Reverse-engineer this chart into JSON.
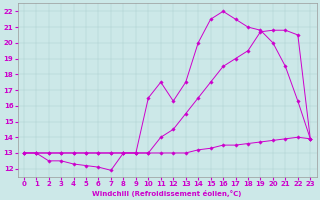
{
  "xlabel": "Windchill (Refroidissement éolien,°C)",
  "bg_color": "#cce8e8",
  "line_color": "#cc00cc",
  "xlim": [
    -0.5,
    23.5
  ],
  "ylim": [
    11.5,
    22.5
  ],
  "xticks": [
    0,
    1,
    2,
    3,
    4,
    5,
    6,
    7,
    8,
    9,
    10,
    11,
    12,
    13,
    14,
    15,
    16,
    17,
    18,
    19,
    20,
    21,
    22,
    23
  ],
  "yticks": [
    12,
    13,
    14,
    15,
    16,
    17,
    18,
    19,
    20,
    21,
    22
  ],
  "line1_x": [
    0,
    1,
    2,
    3,
    4,
    5,
    6,
    7,
    8,
    9,
    10,
    11,
    12,
    13,
    14,
    15,
    16,
    17,
    18,
    19,
    20,
    21,
    22,
    23
  ],
  "line1_y": [
    13,
    13,
    12.5,
    12.5,
    12.3,
    12.2,
    12.1,
    11.9,
    13,
    13,
    16.5,
    17.5,
    16.3,
    17.5,
    20,
    21.5,
    22,
    21.5,
    21,
    20.8,
    20,
    18.5,
    16.3,
    13.9
  ],
  "line2_x": [
    0,
    1,
    2,
    3,
    4,
    5,
    6,
    7,
    8,
    9,
    10,
    11,
    12,
    13,
    14,
    15,
    16,
    17,
    18,
    19,
    20,
    21,
    22,
    23
  ],
  "line2_y": [
    13,
    13,
    13,
    13,
    13,
    13,
    13,
    13,
    13,
    13,
    13,
    14,
    14.5,
    15.5,
    16.5,
    17.5,
    18.5,
    19,
    19.5,
    20.7,
    20.8,
    20.8,
    20.5,
    13.9
  ],
  "line3_x": [
    0,
    1,
    2,
    3,
    4,
    5,
    6,
    7,
    8,
    9,
    10,
    11,
    12,
    13,
    14,
    15,
    16,
    17,
    18,
    19,
    20,
    21,
    22,
    23
  ],
  "line3_y": [
    13,
    13,
    13,
    13,
    13,
    13,
    13,
    13,
    13,
    13,
    13,
    13,
    13,
    13,
    13.2,
    13.3,
    13.5,
    13.5,
    13.6,
    13.7,
    13.8,
    13.9,
    14,
    13.9
  ],
  "xlabel_fontsize": 5.0,
  "tick_fontsize": 5.0,
  "linewidth": 0.7,
  "markersize": 1.8,
  "grid_color": "#aacccc",
  "grid_lw": 0.3
}
